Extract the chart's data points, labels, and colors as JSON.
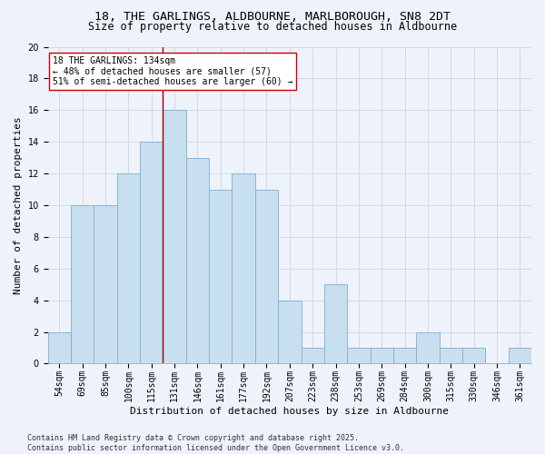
{
  "title_line1": "18, THE GARLINGS, ALDBOURNE, MARLBOROUGH, SN8 2DT",
  "title_line2": "Size of property relative to detached houses in Aldbourne",
  "xlabel": "Distribution of detached houses by size in Aldbourne",
  "ylabel": "Number of detached properties",
  "categories": [
    "54sqm",
    "69sqm",
    "85sqm",
    "100sqm",
    "115sqm",
    "131sqm",
    "146sqm",
    "161sqm",
    "177sqm",
    "192sqm",
    "207sqm",
    "223sqm",
    "238sqm",
    "253sqm",
    "269sqm",
    "284sqm",
    "300sqm",
    "315sqm",
    "330sqm",
    "346sqm",
    "361sqm"
  ],
  "values": [
    2,
    10,
    10,
    12,
    14,
    16,
    13,
    11,
    12,
    11,
    4,
    1,
    5,
    1,
    1,
    1,
    2,
    1,
    1,
    0,
    1
  ],
  "bar_color": "#c8dff0",
  "bar_edge_color": "#7aafd4",
  "vline_x_index": 4.5,
  "vline_color": "#990000",
  "annotation_text": "18 THE GARLINGS: 134sqm\n← 48% of detached houses are smaller (57)\n51% of semi-detached houses are larger (60) →",
  "annotation_box_facecolor": "#ffffff",
  "annotation_box_edgecolor": "#cc0000",
  "ylim": [
    0,
    20
  ],
  "yticks": [
    0,
    2,
    4,
    6,
    8,
    10,
    12,
    14,
    16,
    18,
    20
  ],
  "footer_line1": "Contains HM Land Registry data © Crown copyright and database right 2025.",
  "footer_line2": "Contains public sector information licensed under the Open Government Licence v3.0.",
  "background_color": "#eef2fa",
  "grid_color": "#c8cfe0",
  "title_fontsize": 9.5,
  "subtitle_fontsize": 8.5,
  "axis_label_fontsize": 8,
  "tick_fontsize": 7,
  "annotation_fontsize": 7,
  "footer_fontsize": 6
}
